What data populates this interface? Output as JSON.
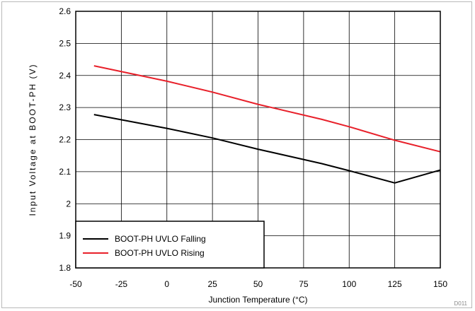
{
  "chart_data": {
    "type": "line",
    "title": "",
    "xlabel": "Junction Temperature (°C)",
    "ylabel": "Input Voltage at BOOT-PH (V)",
    "xlim": [
      -50,
      150
    ],
    "ylim": [
      1.8,
      2.6
    ],
    "xticks": [
      -50,
      -25,
      0,
      25,
      50,
      75,
      100,
      125,
      150
    ],
    "yticks": [
      1.8,
      1.9,
      2.0,
      2.1,
      2.2,
      2.3,
      2.4,
      2.5,
      2.6
    ],
    "xtick_labels": [
      "-50",
      "-25",
      "0",
      "25",
      "50",
      "75",
      "100",
      "125",
      "150"
    ],
    "ytick_labels": [
      "1.8",
      "1.9",
      "2",
      "2.1",
      "2.2",
      "2.3",
      "2.4",
      "2.5",
      "2.6"
    ],
    "grid": true,
    "legend_position": "bottom-left",
    "series": [
      {
        "name": "BOOT-PH UVLO Falling",
        "color": "#000000",
        "x": [
          -40,
          0,
          25,
          50,
          85,
          100,
          125,
          150
        ],
        "y": [
          2.278,
          2.235,
          2.205,
          2.17,
          2.125,
          2.103,
          2.065,
          2.105
        ]
      },
      {
        "name": "BOOT-PH UVLO Rising",
        "color": "#e8202a",
        "x": [
          -40,
          0,
          25,
          50,
          85,
          100,
          125,
          150
        ],
        "y": [
          2.43,
          2.382,
          2.348,
          2.31,
          2.263,
          2.24,
          2.198,
          2.162
        ]
      }
    ],
    "footnote": "D011"
  }
}
